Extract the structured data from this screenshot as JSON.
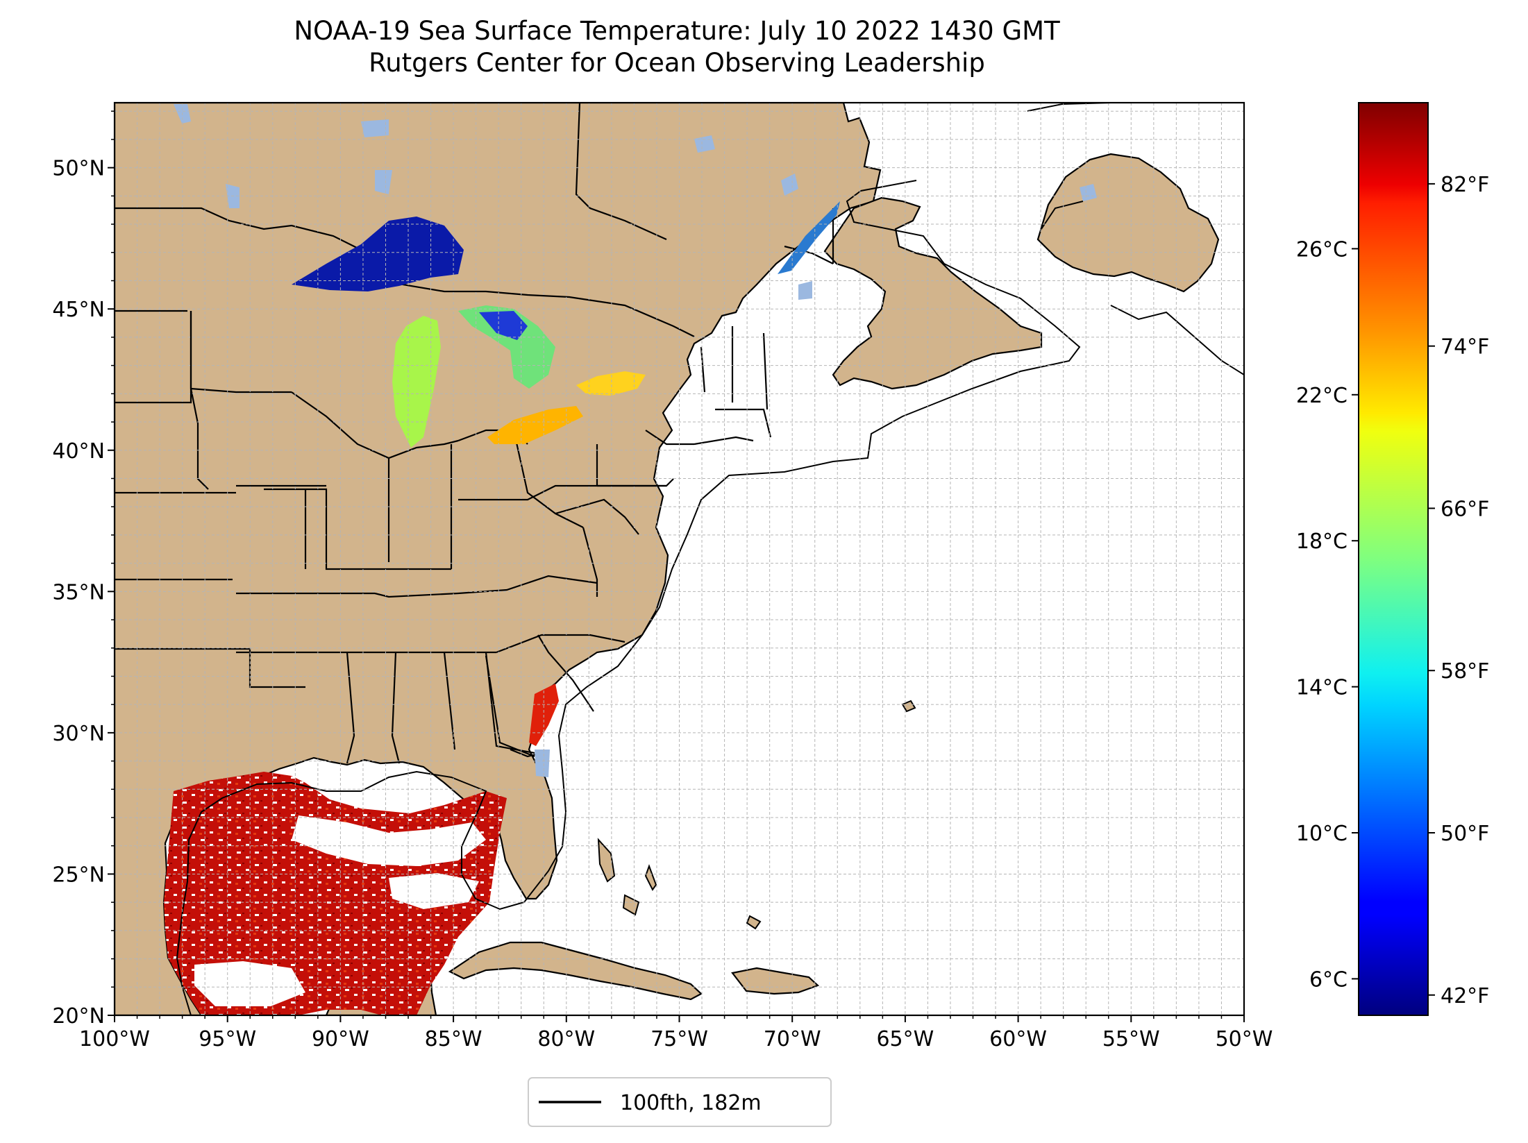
{
  "title": {
    "line1": "NOAA-19 Sea Surface Temperature: July 10 2022 1430 GMT",
    "line2": "Rutgers Center for Ocean Observing Leadership"
  },
  "map": {
    "lon_range": [
      -100,
      -50
    ],
    "lat_range": [
      20,
      52.3
    ],
    "x_ticks": [
      {
        "lon": -100,
        "label": "100°W"
      },
      {
        "lon": -95,
        "label": "95°W"
      },
      {
        "lon": -90,
        "label": "90°W"
      },
      {
        "lon": -85,
        "label": "85°W"
      },
      {
        "lon": -80,
        "label": "80°W"
      },
      {
        "lon": -75,
        "label": "75°W"
      },
      {
        "lon": -70,
        "label": "70°W"
      },
      {
        "lon": -65,
        "label": "65°W"
      },
      {
        "lon": -60,
        "label": "60°W"
      },
      {
        "lon": -55,
        "label": "55°W"
      },
      {
        "lon": -50,
        "label": "50°W"
      }
    ],
    "y_ticks": [
      {
        "lat": 20,
        "label": "20°N"
      },
      {
        "lat": 25,
        "label": "25°N"
      },
      {
        "lat": 30,
        "label": "30°N"
      },
      {
        "lat": 35,
        "label": "35°N"
      },
      {
        "lat": 40,
        "label": "40°N"
      },
      {
        "lat": 45,
        "label": "45°N"
      },
      {
        "lat": 50,
        "label": "50°N"
      }
    ],
    "grid": true,
    "grid_spacing_deg": 1,
    "colors": {
      "land": "#d2b48c",
      "ocean": "#ffffff",
      "inland_water": "#9bb8e0",
      "border": "#000000",
      "grid": "#b0b0b0"
    }
  },
  "legend": {
    "label": "100fth, 182m",
    "placement": "below-map"
  },
  "colorbar": {
    "cmap": "jet",
    "range_c": [
      5.0,
      30.0
    ],
    "celsius_ticks": [
      {
        "value": 6,
        "label": "6°C"
      },
      {
        "value": 10,
        "label": "10°C"
      },
      {
        "value": 14,
        "label": "14°C"
      },
      {
        "value": 18,
        "label": "18°C"
      },
      {
        "value": 22,
        "label": "22°C"
      },
      {
        "value": 26,
        "label": "26°C"
      }
    ],
    "fahrenheit_ticks": [
      {
        "value": 42,
        "label": "42°F"
      },
      {
        "value": 50,
        "label": "50°F"
      },
      {
        "value": 58,
        "label": "58°F"
      },
      {
        "value": 66,
        "label": "66°F"
      },
      {
        "value": 74,
        "label": "74°F"
      },
      {
        "value": 82,
        "label": "82°F"
      }
    ]
  }
}
